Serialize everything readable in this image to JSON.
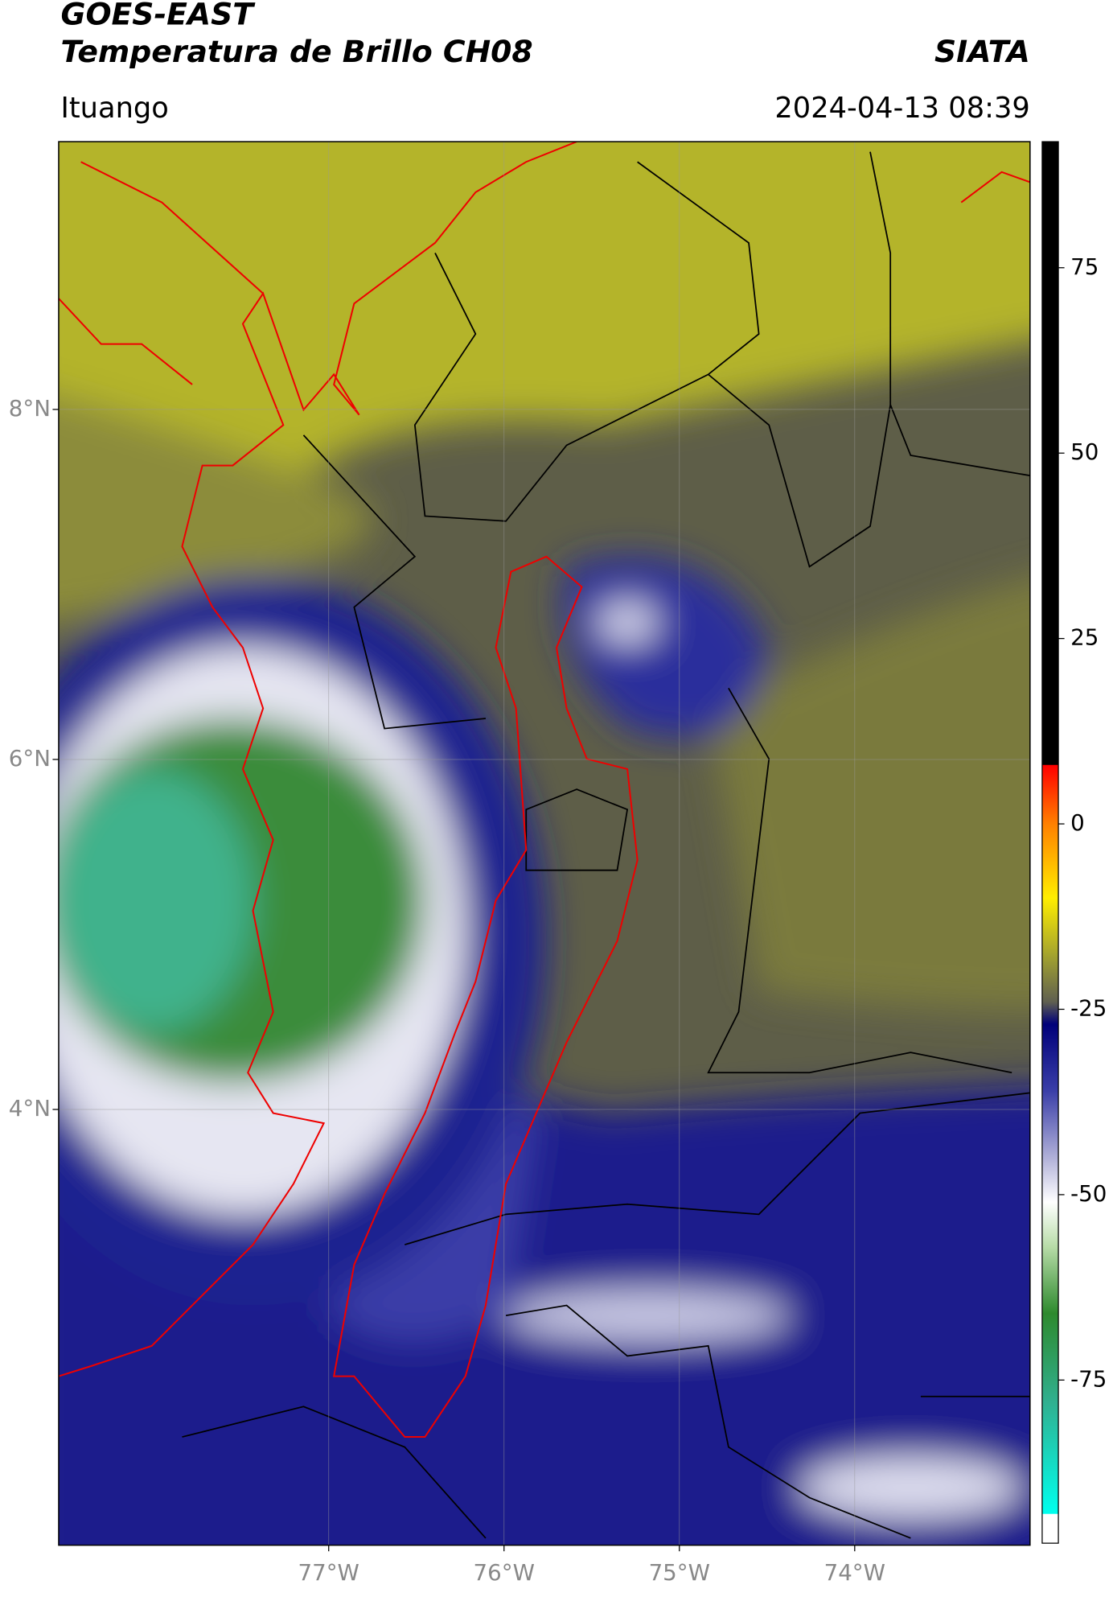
{
  "header": {
    "title": "GOES-EAST",
    "subtitle": "Temperatura de Brillo CH08",
    "agency": "SIATA",
    "location": "Ituango",
    "datetime": "2024-04-13 08:39"
  },
  "map": {
    "xlim": [
      -78.54,
      -73.0
    ],
    "ylim": [
      1.51,
      9.53
    ],
    "xticks": [
      {
        "value": -77,
        "label": "77°W"
      },
      {
        "value": -76,
        "label": "76°W"
      },
      {
        "value": -75,
        "label": "75°W"
      },
      {
        "value": -74,
        "label": "74°W"
      }
    ],
    "yticks": [
      {
        "value": 4,
        "label": "4°N"
      },
      {
        "value": 6,
        "label": "6°N"
      },
      {
        "value": 8,
        "label": "8°N"
      }
    ],
    "grid": true
  },
  "colorbar": {
    "lim": [
      -97,
      92
    ],
    "ticks": [
      75,
      50,
      25,
      0,
      -25,
      -50,
      -75
    ],
    "colormap": [
      {
        "value": 92,
        "color": "#000000"
      },
      {
        "value": 8,
        "color": "#000000"
      },
      {
        "value": 7.9,
        "color": "#ff0000"
      },
      {
        "value": 0,
        "color": "#ff8000"
      },
      {
        "value": -10,
        "color": "#ffee00"
      },
      {
        "value": -18,
        "color": "#a0a030"
      },
      {
        "value": -24,
        "color": "#606050"
      },
      {
        "value": -27,
        "color": "#00007a"
      },
      {
        "value": -36,
        "color": "#3a3ea8"
      },
      {
        "value": -45,
        "color": "#b0b0d8"
      },
      {
        "value": -51,
        "color": "#ffffff"
      },
      {
        "value": -57,
        "color": "#b8dca8"
      },
      {
        "value": -66,
        "color": "#2e8a2e"
      },
      {
        "value": -78,
        "color": "#30b090"
      },
      {
        "value": -93,
        "color": "#00ffee"
      },
      {
        "value": -93.1,
        "color": "#ffffff"
      },
      {
        "value": -97,
        "color": "#ffffff"
      }
    ]
  }
}
